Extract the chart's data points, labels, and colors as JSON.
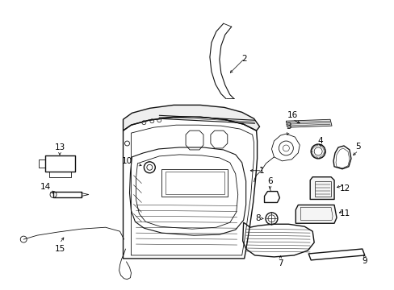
{
  "background_color": "#ffffff",
  "line_color": "#000000",
  "figsize": [
    4.89,
    3.6
  ],
  "dpi": 100,
  "label_fontsize": 7.5
}
